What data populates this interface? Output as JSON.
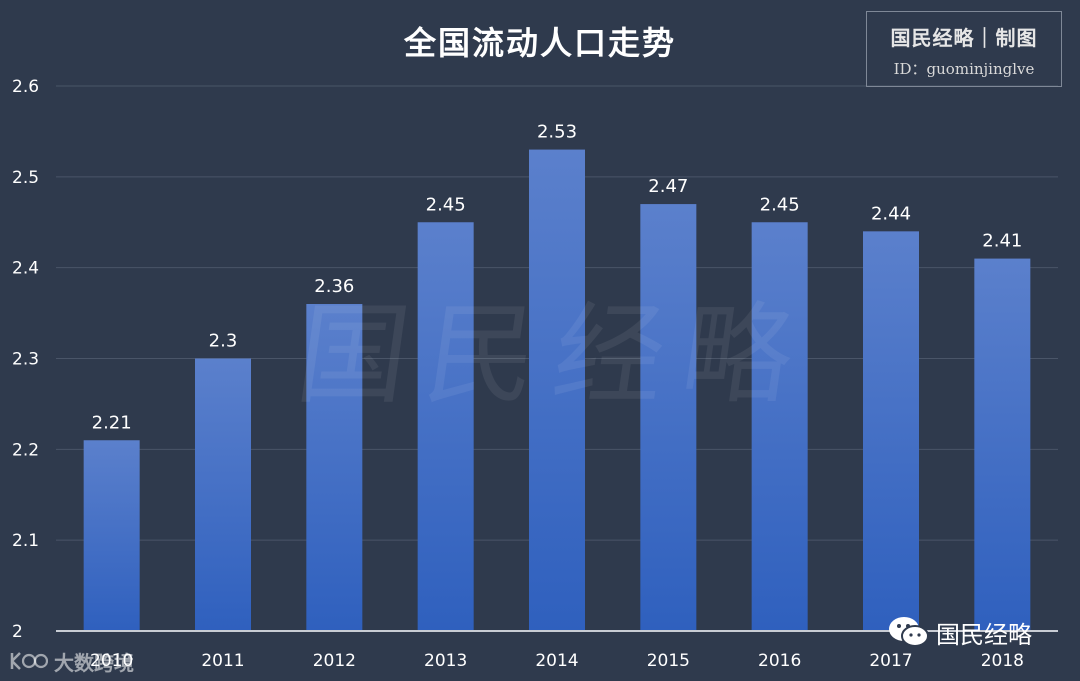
{
  "chart_data": {
    "type": "bar",
    "title": "全国流动人口走势",
    "categories": [
      "2010",
      "2011",
      "2012",
      "2013",
      "2014",
      "2015",
      "2016",
      "2017",
      "2018"
    ],
    "values": [
      2.21,
      2.3,
      2.36,
      2.45,
      2.53,
      2.47,
      2.45,
      2.44,
      2.41
    ],
    "data_labels": [
      "2.21",
      "2.3",
      "2.36",
      "2.45",
      "2.53",
      "2.47",
      "2.45",
      "2.44",
      "2.41"
    ],
    "y_ticks": [
      "2",
      "2.1",
      "2.2",
      "2.3",
      "2.4",
      "2.5",
      "2.6"
    ],
    "ylim": [
      2,
      2.6
    ],
    "grid": true,
    "legend": "none",
    "xlabel": "",
    "ylabel": "",
    "colors": {
      "background": "#2f3a4d",
      "bar_top": "#5b80cc",
      "bar_bottom": "#2f60be",
      "grid": "#4a5568",
      "axis": "#c8ccd4",
      "text": "#ffffff"
    }
  },
  "credit": {
    "line1": "国民经略｜制图",
    "line2": "ID：guominjinglve"
  },
  "watermark": "国民经略",
  "brand": {
    "icon": "wechat-icon",
    "name": "国民经略"
  },
  "corner_brand": {
    "icon": "app-logo-icon",
    "name": "大数跨境"
  }
}
